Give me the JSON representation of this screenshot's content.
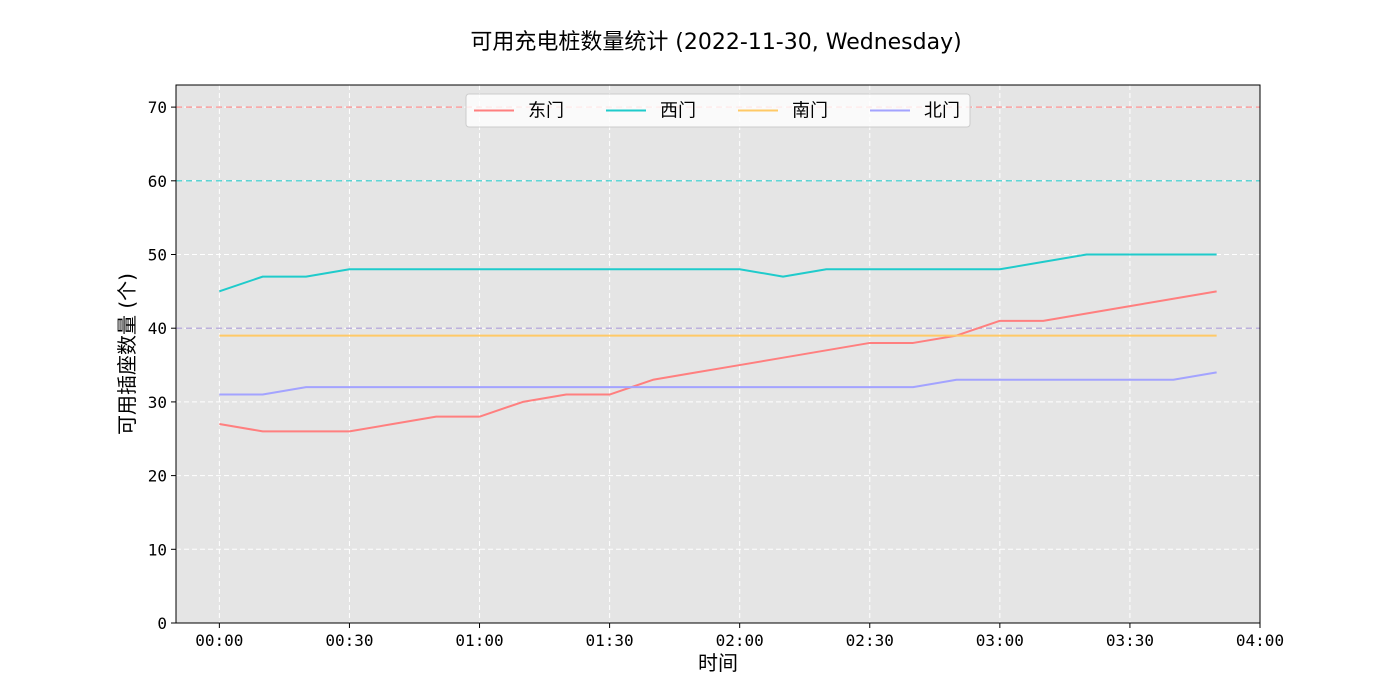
{
  "chart_data": {
    "type": "line",
    "title": "可用充电桩数量统计 (2022-11-30, Wednesday)",
    "xlabel": "时间",
    "ylabel": "可用插座数量 (个)",
    "x_tick_labels": [
      "00:00",
      "00:30",
      "01:00",
      "01:30",
      "02:00",
      "02:30",
      "03:00",
      "03:30",
      "04:00"
    ],
    "x_tick_minutes": [
      0,
      30,
      60,
      90,
      120,
      150,
      180,
      210,
      240
    ],
    "x_minutes": [
      0,
      10,
      20,
      30,
      40,
      50,
      60,
      70,
      80,
      90,
      100,
      110,
      120,
      130,
      140,
      150,
      160,
      170,
      180,
      190,
      200,
      210,
      220,
      230
    ],
    "xlim_minutes": [
      -10,
      240
    ],
    "ylim": [
      0,
      73
    ],
    "y_ticks": [
      0,
      10,
      20,
      30,
      40,
      50,
      60,
      70
    ],
    "grid": true,
    "legend_position": "top-center",
    "series": [
      {
        "name": "东门",
        "color": "#ff7f7f",
        "values": [
          27,
          26,
          26,
          26,
          27,
          28,
          28,
          30,
          31,
          31,
          33,
          34,
          35,
          36,
          37,
          38,
          38,
          39,
          41,
          41,
          42,
          43,
          44,
          45
        ],
        "capacity": 70
      },
      {
        "name": "西门",
        "color": "#1fcbcb",
        "values": [
          45,
          47,
          47,
          48,
          48,
          48,
          48,
          48,
          48,
          48,
          48,
          48,
          48,
          47,
          48,
          48,
          48,
          48,
          48,
          49,
          50,
          50,
          50,
          50
        ],
        "capacity": 60
      },
      {
        "name": "南门",
        "color": "#ffc966",
        "values": [
          39,
          39,
          39,
          39,
          39,
          39,
          39,
          39,
          39,
          39,
          39,
          39,
          39,
          39,
          39,
          39,
          39,
          39,
          39,
          39,
          39,
          39,
          39,
          39
        ],
        "capacity": 40
      },
      {
        "name": "北门",
        "color": "#a3a3ff",
        "values": [
          31,
          31,
          32,
          32,
          32,
          32,
          32,
          32,
          32,
          32,
          32,
          32,
          32,
          32,
          32,
          32,
          32,
          33,
          33,
          33,
          33,
          33,
          33,
          34
        ],
        "capacity": 40
      }
    ]
  }
}
